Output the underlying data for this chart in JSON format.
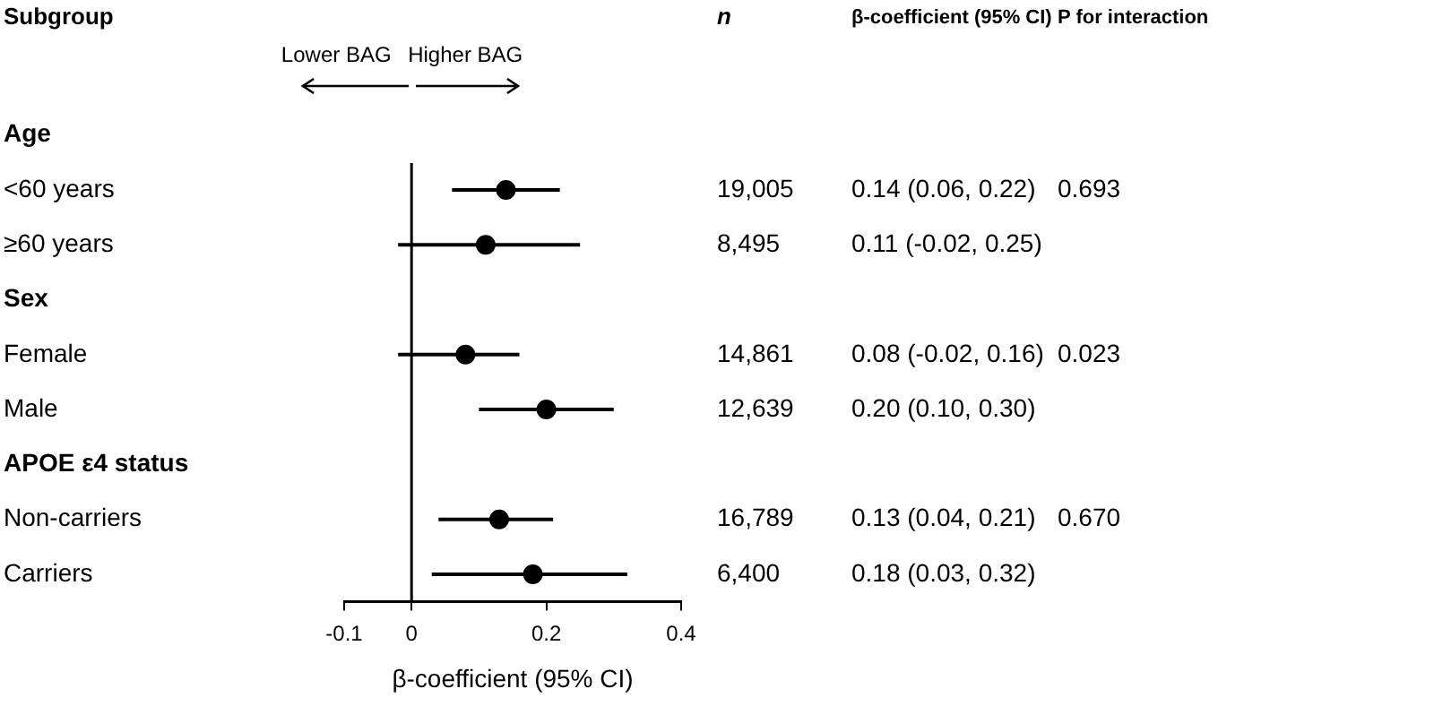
{
  "chart_data": {
    "type": "scatter",
    "orientation": "horizontal",
    "xlabel": "β-coefficient (95% CI)",
    "categories": [
      "Age",
      "<60 years",
      "≥60 years",
      "Sex",
      "Female",
      "Male",
      "APOE ε4 status",
      "Non-carriers",
      "Carriers"
    ],
    "values": [
      null,
      0.14,
      0.11,
      null,
      0.08,
      0.2,
      null,
      0.13,
      0.18
    ],
    "errors": [
      null,
      [
        0.06,
        0.22
      ],
      [
        -0.02,
        0.25
      ],
      null,
      [
        -0.02,
        0.16
      ],
      [
        0.1,
        0.3
      ],
      null,
      [
        0.04,
        0.21
      ],
      [
        0.03,
        0.32
      ]
    ],
    "value_labels": [
      null,
      "0.14 (0.06, 0.22)",
      "0.11 (-0.02, 0.25)",
      null,
      "0.08 (-0.02, 0.16)",
      "0.20 (0.10, 0.30)",
      null,
      "0.13 (0.04, 0.21)",
      "0.18 (0.03, 0.32)"
    ],
    "color": "#000000",
    "marker": "circle",
    "xlim": [
      -0.1,
      0.4
    ],
    "xticks": [
      -0.1,
      0,
      0.2,
      0.4
    ],
    "ref_lines": [
      {
        "axis": "x",
        "value": 0
      }
    ],
    "annotations": [
      "Subgroup",
      "n",
      "β-coefficient (95% CI)",
      "P for interaction",
      "Lower BAG",
      "Higher BAG",
      "19,005",
      "8,495",
      "14,861",
      "12,639",
      "16,789",
      "6,400",
      "0.693",
      "0.023",
      "0.670"
    ]
  }
}
